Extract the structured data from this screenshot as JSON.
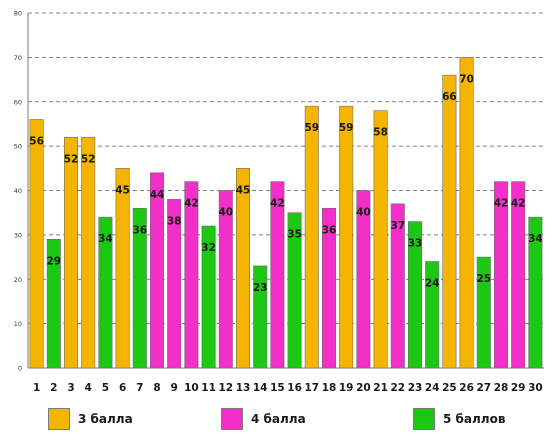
{
  "chart_data": {
    "type": "bar",
    "title": "",
    "xlabel": "",
    "ylabel": "",
    "ylim": [
      0,
      80
    ],
    "yticks": [
      0,
      10,
      20,
      30,
      40,
      50,
      60,
      70,
      80
    ],
    "grid": true,
    "legend_position": "bottom",
    "categories": [
      "1",
      "2",
      "3",
      "4",
      "5",
      "6",
      "7",
      "8",
      "9",
      "10",
      "11",
      "12",
      "13",
      "14",
      "15",
      "16",
      "17",
      "18",
      "19",
      "20",
      "21",
      "22",
      "23",
      "24",
      "25",
      "26",
      "27",
      "28",
      "29",
      "30"
    ],
    "values": [
      56,
      29,
      52,
      52,
      34,
      45,
      36,
      44,
      38,
      42,
      32,
      40,
      45,
      23,
      42,
      35,
      59,
      36,
      59,
      40,
      58,
      37,
      33,
      24,
      66,
      70,
      25,
      42,
      42,
      34
    ],
    "groups": [
      "3 балла",
      "5 баллов",
      "3 балла",
      "3 балла",
      "5 баллов",
      "3 балла",
      "5 баллов",
      "4 балла",
      "4 балла",
      "4 балла",
      "5 баллов",
      "4 балла",
      "3 балла",
      "5 баллов",
      "4 балла",
      "5 баллов",
      "3 балла",
      "4 балла",
      "3 балла",
      "4 балла",
      "3 балла",
      "4 балла",
      "5 баллов",
      "5 баллов",
      "3 балла",
      "3 балла",
      "5 баллов",
      "4 балла",
      "4 балла",
      "5 баллов"
    ],
    "series": [
      {
        "name": "3 балла",
        "color": "#f5b400"
      },
      {
        "name": "4 балла",
        "color": "#f22fc8"
      },
      {
        "name": "5 баллов",
        "color": "#1dc814"
      }
    ]
  },
  "legend": [
    {
      "label": "3 балла",
      "color": "#f5b400"
    },
    {
      "label": "4 балла",
      "color": "#f22fc8"
    },
    {
      "label": "5 баллов",
      "color": "#1dc814"
    }
  ]
}
